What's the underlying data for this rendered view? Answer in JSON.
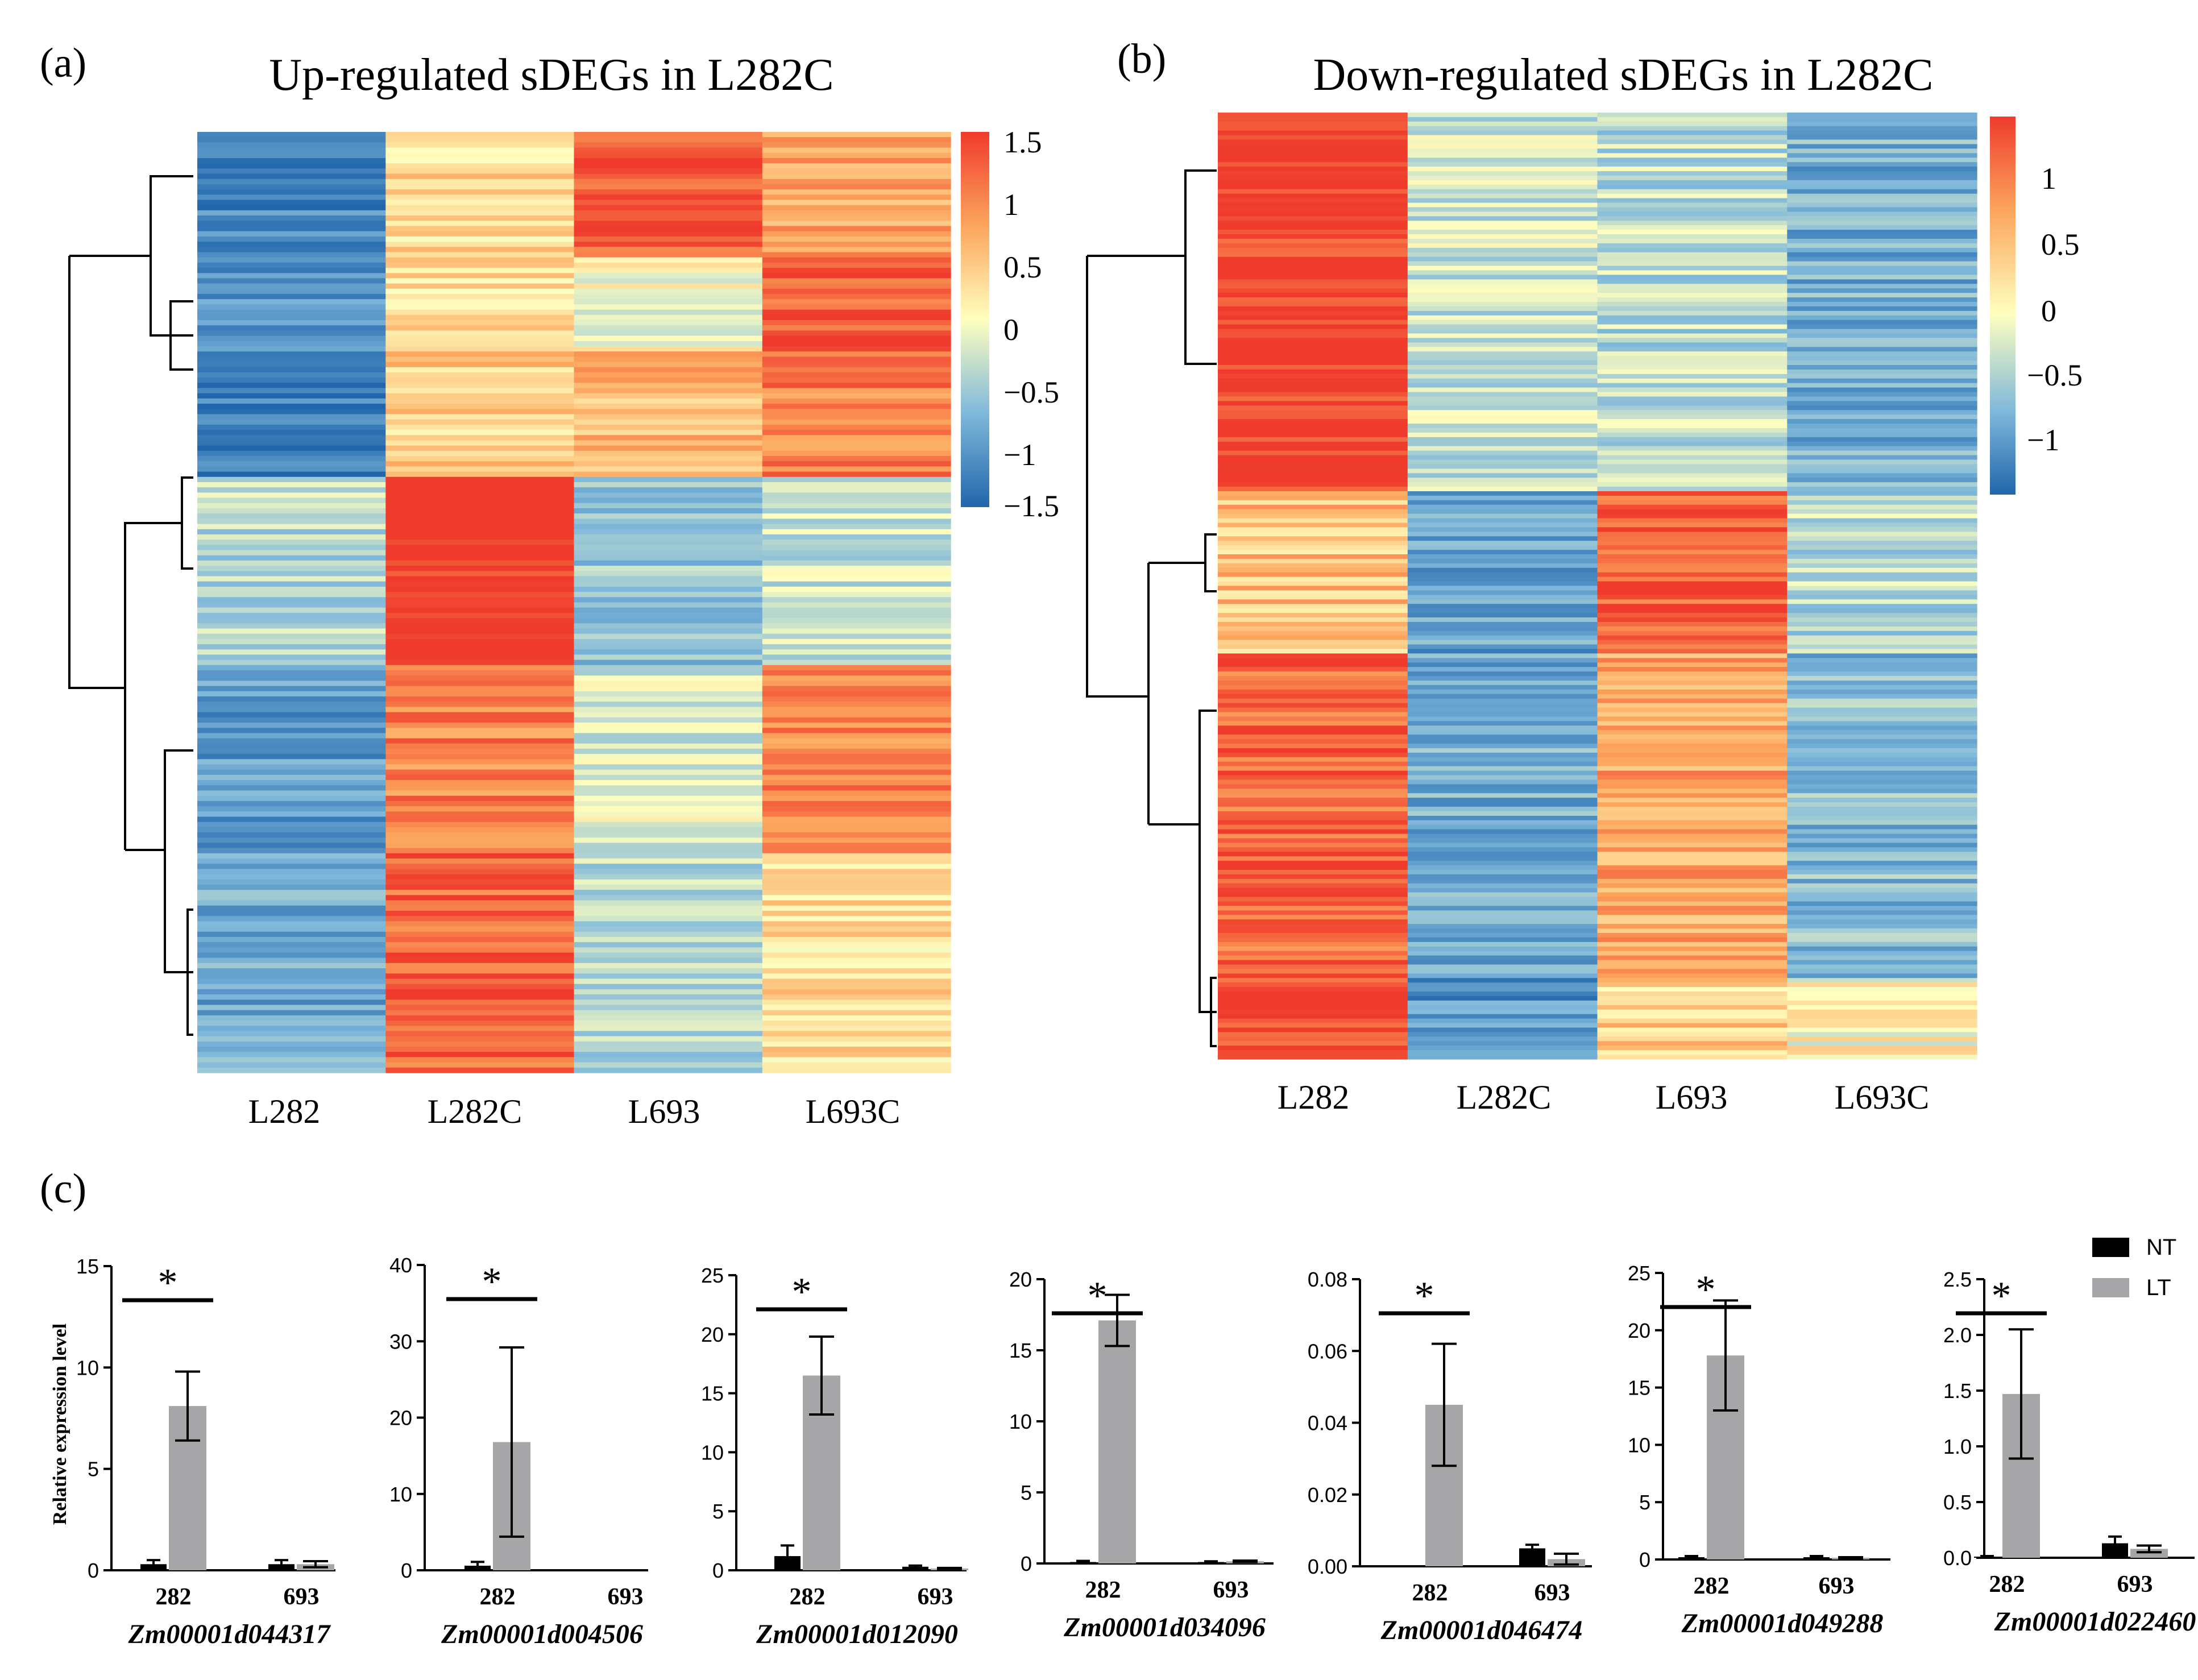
{
  "chart_data": [
    {
      "type": "heatmap",
      "panel": "(a)",
      "title": "Up-regulated sDEGs in L282C",
      "columns": [
        "L282",
        "L282C",
        "L693",
        "L693C"
      ],
      "colorbar": {
        "ticks": [
          "1.5",
          "1",
          "0.5",
          "0",
          "−0.5",
          "−1",
          "−1.5"
        ],
        "range": [
          -1.5,
          1.5
        ]
      },
      "clusters": [
        {
          "rows": 4,
          "values": [
            -1.2,
            0.3,
            1.3,
            0.7
          ]
        },
        {
          "rows": 3,
          "values": [
            -1.0,
            0.3,
            0.0,
            1.3
          ]
        },
        {
          "rows": 4,
          "values": [
            -1.3,
            0.4,
            0.6,
            1.0
          ]
        },
        {
          "rows": 6,
          "values": [
            -0.4,
            1.6,
            -0.6,
            -0.3
          ]
        },
        {
          "rows": 6,
          "values": [
            -1.0,
            1.0,
            -0.2,
            1.0
          ]
        },
        {
          "rows": 7,
          "values": [
            -0.9,
            1.2,
            -0.4,
            0.3
          ]
        }
      ],
      "colors": {
        "low": "#2166ac",
        "mid": "#ffffbf",
        "high": "#ef3b2c"
      }
    },
    {
      "type": "heatmap",
      "panel": "(b)",
      "title": "Down-regulated sDEGs in L282C",
      "columns": [
        "L282",
        "L282C",
        "L693",
        "L693C"
      ],
      "colorbar": {
        "ticks": [
          "1",
          "0.5",
          "0",
          "−0.5",
          "−1"
        ],
        "range": [
          -1.3,
          1.4
        ]
      },
      "clusters": [
        {
          "rows": 14,
          "values": [
            1.4,
            -0.2,
            -0.3,
            -0.7
          ]
        },
        {
          "rows": 6,
          "values": [
            0.5,
            -0.8,
            1.2,
            -0.3
          ]
        },
        {
          "rows": 12,
          "values": [
            1.1,
            -0.7,
            0.7,
            -0.6
          ]
        },
        {
          "rows": 3,
          "values": [
            1.3,
            -0.9,
            0.4,
            0.1
          ]
        }
      ]
    },
    {
      "type": "bar",
      "panel": "(c)",
      "ylabel": "Relative expression level",
      "legend": [
        {
          "name": "NT",
          "color": "#000000"
        },
        {
          "name": "LT",
          "color": "#a6a6a8"
        }
      ],
      "categories": [
        "282",
        "693"
      ],
      "subplots": [
        {
          "gene": "Zm00001d044317",
          "ylim": [
            0,
            15
          ],
          "ticks": [
            "0",
            "5",
            "10",
            "15"
          ],
          "tick_values": [
            0,
            5,
            10,
            15
          ],
          "NT": [
            0.3,
            0.3
          ],
          "NT_err": [
            0.2,
            0.2
          ],
          "LT": [
            8.1,
            0.3
          ],
          "LT_err": [
            1.7,
            0.15
          ],
          "star": "*"
        },
        {
          "gene": "Zm00001d004506",
          "ylim": [
            0,
            40
          ],
          "ticks": [
            "0",
            "10",
            "20",
            "30",
            "40"
          ],
          "tick_values": [
            0,
            10,
            20,
            30,
            40
          ],
          "NT": [
            0.6,
            0.0
          ],
          "NT_err": [
            0.5,
            0.0
          ],
          "LT": [
            16.8,
            0.0
          ],
          "LT_err": [
            12.4,
            0.0
          ],
          "star": "*"
        },
        {
          "gene": "Zm00001d012090",
          "ylim": [
            0,
            25
          ],
          "ticks": [
            "0",
            "5",
            "10",
            "15",
            "20",
            "25"
          ],
          "tick_values": [
            0,
            5,
            10,
            15,
            20,
            25
          ],
          "NT": [
            1.2,
            0.3
          ],
          "NT_err": [
            0.9,
            0.1
          ],
          "LT": [
            16.5,
            0.15
          ],
          "LT_err": [
            3.3,
            0.05
          ],
          "star": "*"
        },
        {
          "gene": "Zm00001d034096",
          "ylim": [
            0,
            20
          ],
          "ticks": [
            "0",
            "5",
            "10",
            "15",
            "20"
          ],
          "tick_values": [
            0,
            5,
            10,
            15,
            20
          ],
          "NT": [
            0.1,
            0.1
          ],
          "NT_err": [
            0.08,
            0.05
          ],
          "LT": [
            17.1,
            0.15
          ],
          "LT_err": [
            1.8,
            0.05
          ],
          "star": "*"
        },
        {
          "gene": "Zm00001d046474",
          "ylim": [
            0,
            0.08
          ],
          "ticks": [
            "0.00",
            "0.02",
            "0.04",
            "0.06",
            "0.08"
          ],
          "tick_values": [
            0,
            0.02,
            0.04,
            0.06,
            0.08
          ],
          "NT": [
            0.0,
            0.005
          ],
          "NT_err": [
            0.0,
            0.001
          ],
          "LT": [
            0.045,
            0.002
          ],
          "LT_err": [
            0.017,
            0.0015
          ],
          "star": "*"
        },
        {
          "gene": "Zm00001d049288",
          "ylim": [
            0,
            25
          ],
          "ticks": [
            "0",
            "5",
            "10",
            "15",
            "20",
            "25"
          ],
          "tick_values": [
            0,
            5,
            10,
            15,
            20,
            25
          ],
          "NT": [
            0.2,
            0.2
          ],
          "NT_err": [
            0.1,
            0.1
          ],
          "LT": [
            17.8,
            0.15
          ],
          "LT_err": [
            4.8,
            0.05
          ],
          "star": "*"
        },
        {
          "gene": "Zm00001d022460",
          "ylim": [
            0,
            2.5
          ],
          "ticks": [
            "0.0",
            "0.5",
            "1.0",
            "1.5",
            "2.0",
            "2.5"
          ],
          "tick_values": [
            0,
            0.5,
            1.0,
            1.5,
            2.0,
            2.5
          ],
          "NT": [
            0.01,
            0.13
          ],
          "NT_err": [
            0.005,
            0.06
          ],
          "LT": [
            1.47,
            0.08
          ],
          "LT_err": [
            0.58,
            0.03
          ],
          "star": "*"
        }
      ]
    }
  ]
}
